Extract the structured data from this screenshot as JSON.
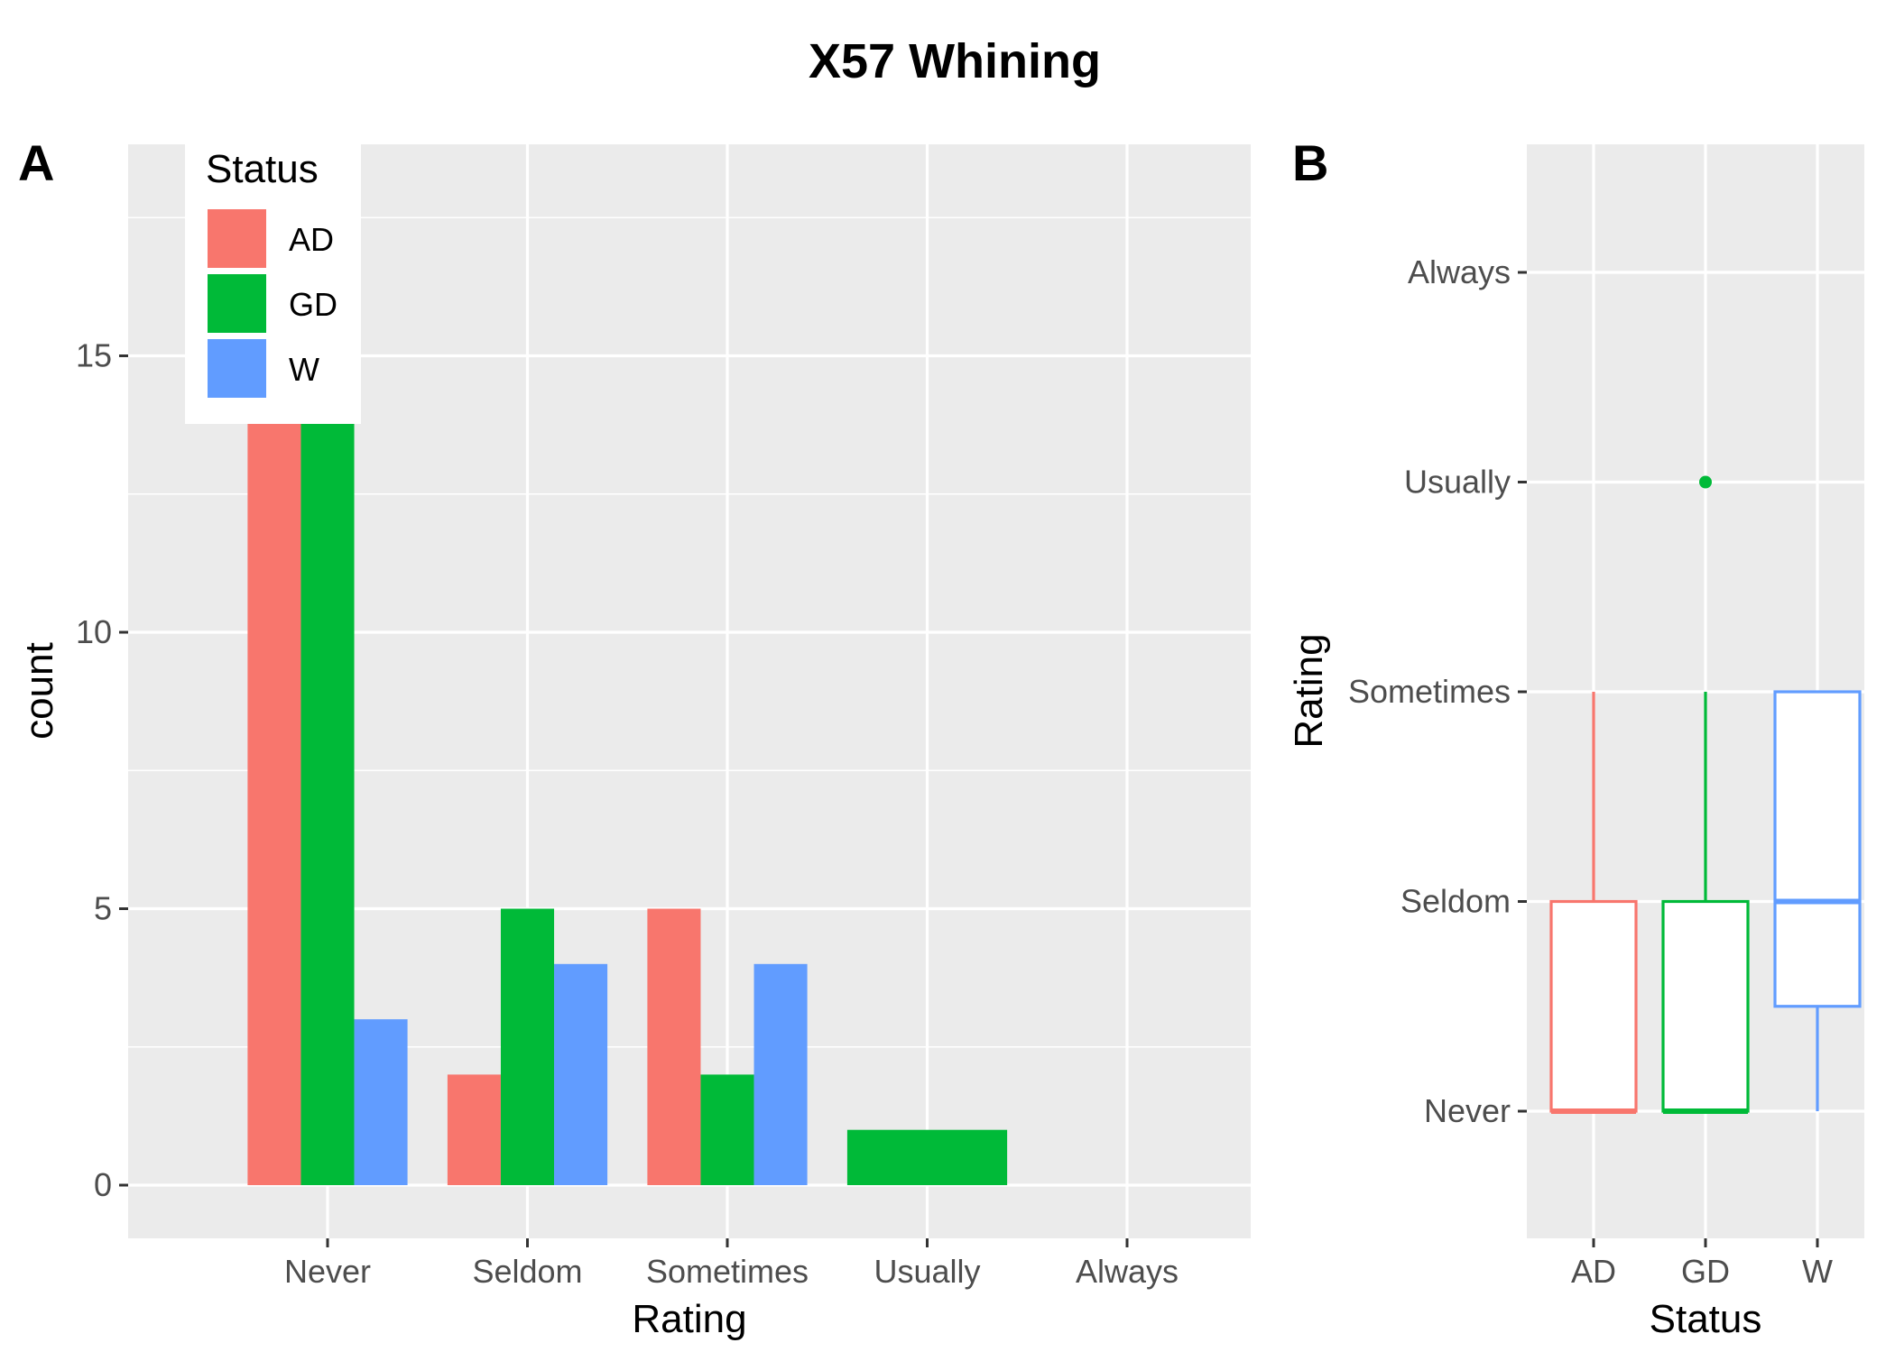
{
  "title": "X57 Whining",
  "colors": {
    "AD": "#F8766D",
    "GD": "#00BA38",
    "W": "#619CFF",
    "panel_bg": "#EBEBEB",
    "grid": "#FFFFFF"
  },
  "chart_data": [
    {
      "panel": "A",
      "type": "bar",
      "xlabel": "Rating",
      "ylabel": "count",
      "categories": [
        "Never",
        "Seldom",
        "Sometimes",
        "Usually",
        "Always"
      ],
      "yticks": [
        "0",
        "5",
        "10",
        "15"
      ],
      "ylim": [
        -0.8,
        18.8
      ],
      "grid": true,
      "legend": {
        "title": "Status",
        "position": "top-left",
        "entries": [
          "AD",
          "GD",
          "W"
        ]
      },
      "series": [
        {
          "name": "AD",
          "values": [
            17,
            2,
            5,
            0,
            0
          ]
        },
        {
          "name": "GD",
          "values": [
            17,
            5,
            2,
            1,
            0
          ]
        },
        {
          "name": "W",
          "values": [
            3,
            4,
            4,
            0,
            0
          ]
        }
      ],
      "notes": "Usually has a single GD bar of count 1 spanning the full dodge width; Always has no bars"
    },
    {
      "panel": "B",
      "type": "box",
      "xlabel": "Status",
      "ylabel": "Rating",
      "categories": [
        "AD",
        "GD",
        "W"
      ],
      "ytick_labels": [
        "Never",
        "Seldom",
        "Sometimes",
        "Usually",
        "Always"
      ],
      "ylim": [
        0.4,
        5.6
      ],
      "grid": true,
      "boxes": [
        {
          "name": "AD",
          "min": 1,
          "q1": 1,
          "median": 1,
          "q3": 2,
          "max": 3,
          "outliers": []
        },
        {
          "name": "GD",
          "min": 1,
          "q1": 1,
          "median": 1,
          "q3": 2,
          "max": 3,
          "outliers": [
            4
          ]
        },
        {
          "name": "W",
          "min": 1,
          "q1": 1.5,
          "median": 2,
          "q3": 3,
          "max": 3,
          "outliers": []
        }
      ]
    }
  ]
}
